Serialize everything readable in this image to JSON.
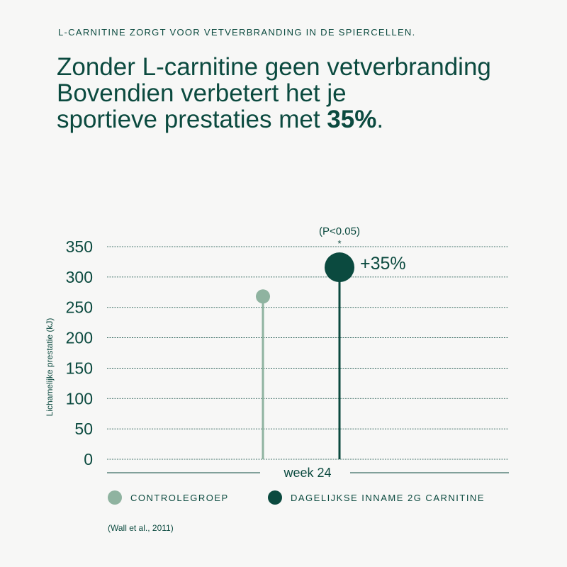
{
  "kicker": "L-CARNITINE ZORGT VOOR VETVERBRANDING IN DE SPIERCELLEN.",
  "headline": {
    "line1": "Zonder L-carnitine geen vetverbranding",
    "line2": "Bovendien verbetert het je",
    "line3_prefix": "sportieve prestaties met ",
    "line3_bold": "35%",
    "line3_suffix": "."
  },
  "colors": {
    "dark": "#0b4a3f",
    "light": "#8fb3a0"
  },
  "chart_data": {
    "type": "lollipop",
    "categories": [
      "week 24"
    ],
    "series": [
      {
        "name": "CONTROLEGROEP",
        "values": [
          268
        ],
        "color": "#8fb3a0"
      },
      {
        "name": "DAGELIJKSE INNAME 2G CARNITINE",
        "values": [
          316
        ],
        "color": "#0b4a3f"
      }
    ],
    "ylabel": "Lichamelijke prestatie (kJ)",
    "xlabel": "week 24",
    "ylim": [
      0,
      350
    ],
    "yticks": [
      "0",
      "50",
      "100",
      "150",
      "200",
      "250",
      "300",
      "350"
    ],
    "grid": true,
    "annotations": {
      "significance": "(P<0.05)",
      "star": "*",
      "increase": "+35%"
    },
    "legend_position": "bottom"
  },
  "source": "(Wall et al., 2011)"
}
